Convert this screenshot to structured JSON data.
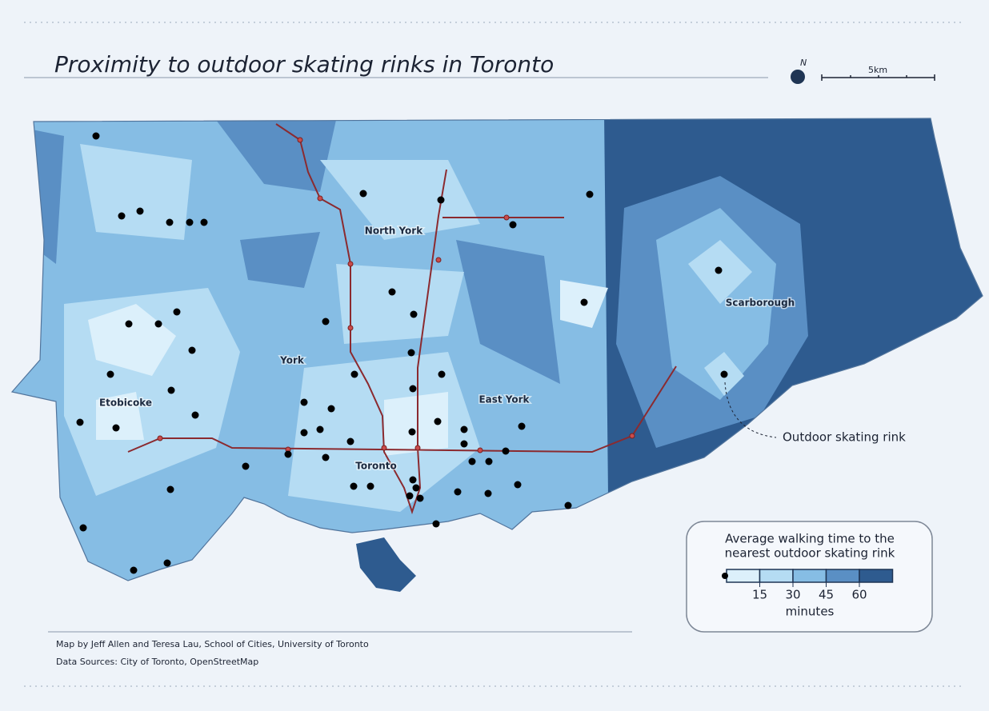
{
  "title": "Proximity to outdoor skating rinks in Toronto",
  "north": "N",
  "scale_label": "5km",
  "places": [
    "North York",
    "Scarborough",
    "York",
    "East York",
    "Etobicoke",
    "Toronto"
  ],
  "annotation": "Outdoor skating rink",
  "legend": {
    "title_lines": [
      "Average walking time to the",
      "nearest outdoor skating rink"
    ],
    "ticks": [
      15,
      30,
      45,
      60
    ],
    "unit": "minutes",
    "colors": [
      "#dcf0fb",
      "#b5dcf3",
      "#86bde4",
      "#5a8fc4",
      "#2e5b8f"
    ]
  },
  "credits": [
    "Map by Jeff Allen and Teresa Lau, School of Cities, University of Toronto",
    "Data Sources: City of Toronto, OpenStreetMap"
  ]
}
